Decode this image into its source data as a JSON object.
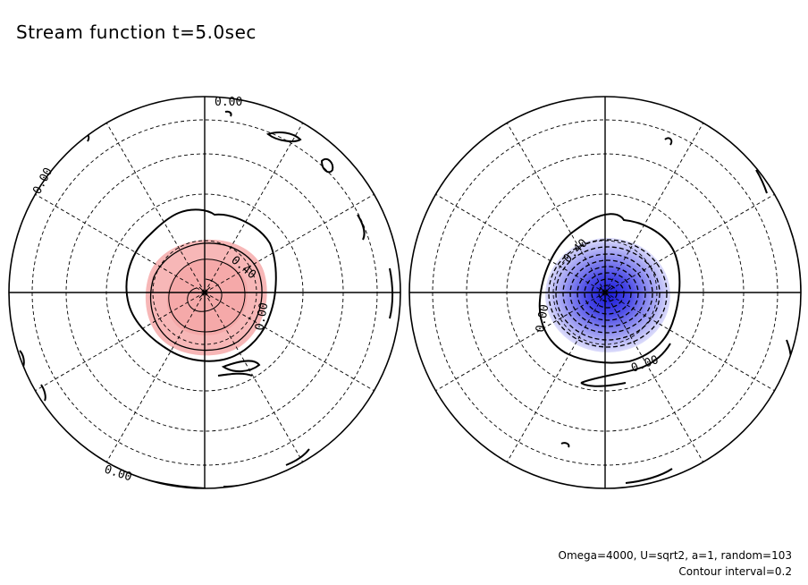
{
  "header": {
    "title": "Stream function t=5.0sec"
  },
  "footer": {
    "params": "Omega=4000, U=sqrt2, a=1, random=103",
    "contour": "Contour interval=0.2"
  },
  "chart_data": [
    {
      "type": "contour",
      "panel": "left",
      "projection": "polar",
      "field": "stream function",
      "levels": [
        0.0,
        0.2,
        0.4,
        0.6
      ],
      "contour_labels": [
        "0.00",
        "0.00",
        "0.40",
        "0.00",
        "0.00"
      ],
      "fill_color": "#f4a6a6",
      "sign": "positive"
    },
    {
      "type": "contour",
      "panel": "right",
      "projection": "polar",
      "field": "stream function",
      "levels": [
        0.0,
        -0.2,
        -0.4,
        -0.6,
        -0.8,
        -1.0,
        -1.2,
        -1.4,
        -1.6
      ],
      "contour_labels": [
        "-0.40",
        "0.00",
        "0.00"
      ],
      "fill_color": "#3a3adf",
      "sign": "negative"
    }
  ]
}
